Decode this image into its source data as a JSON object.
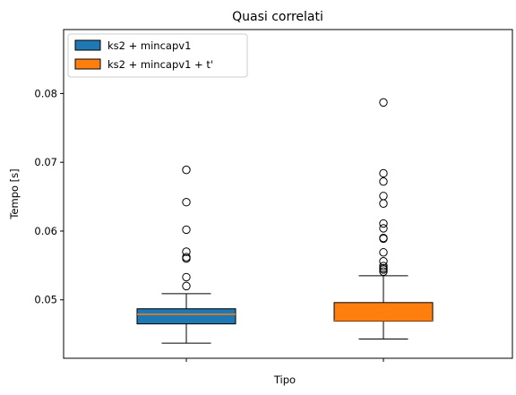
{
  "chart_data": {
    "type": "boxplot",
    "title": "Quasi correlati",
    "xlabel": "Tipo",
    "ylabel": "Tempo [s]",
    "ylim": [
      0.0415,
      0.0893
    ],
    "yticks": [
      0.05,
      0.06,
      0.07,
      0.08
    ],
    "ytick_labels": [
      "0.05",
      "0.06",
      "0.07",
      "0.08"
    ],
    "legend_position": "top-left",
    "grid": false,
    "series": [
      {
        "name": "ks2 + mincapv1",
        "color": "#1f77b4",
        "whisker_low": 0.0437,
        "q1": 0.0465,
        "median": 0.0479,
        "q3": 0.0487,
        "whisker_high": 0.0509,
        "outliers": [
          0.052,
          0.0533,
          0.056,
          0.0562,
          0.057,
          0.0602,
          0.0642,
          0.0689
        ]
      },
      {
        "name": "ks2 + mincapv1 + t'",
        "color": "#ff7f0e",
        "whisker_low": 0.0443,
        "q1": 0.0469,
        "median": 0.047,
        "q3": 0.0496,
        "whisker_high": 0.0535,
        "outliers": [
          0.0541,
          0.0544,
          0.0546,
          0.0549,
          0.0556,
          0.0569,
          0.0589,
          0.059,
          0.0604,
          0.0611,
          0.064,
          0.0651,
          0.0672,
          0.0684,
          0.0787
        ]
      }
    ]
  }
}
